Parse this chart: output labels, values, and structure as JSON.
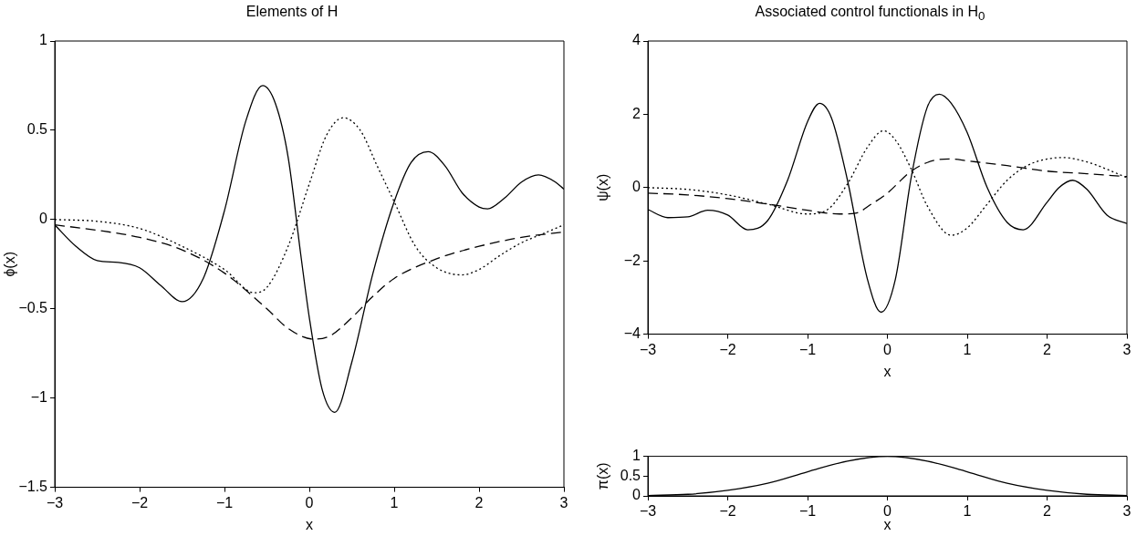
{
  "chart_data": [
    {
      "type": "line",
      "title": "Elements of H",
      "xlabel": "x",
      "ylabel": "ϕ(x)",
      "xlim": [
        -3,
        3
      ],
      "xticks": [
        -3,
        -2,
        -1,
        0,
        1,
        2,
        3
      ],
      "ylim": [
        -1.5,
        1
      ],
      "yticks": [
        -1.5,
        -1,
        -0.5,
        0,
        0.5,
        1
      ],
      "grid": false,
      "legend": false,
      "marker": "none",
      "series": [
        {
          "color": "#000000",
          "line_style": "solid",
          "x": [
            -3,
            -2.75,
            -2.5,
            -2.25,
            -2,
            -1.75,
            -1.5,
            -1.25,
            -1,
            -0.75,
            -0.55,
            -0.4,
            -0.25,
            -0.1,
            0,
            0.15,
            0.3,
            0.5,
            0.75,
            1,
            1.2,
            1.4,
            1.6,
            1.8,
            2,
            2.1,
            2.3,
            2.5,
            2.7,
            2.9,
            3
          ],
          "values": [
            -0.03,
            -0.15,
            -0.23,
            -0.24,
            -0.27,
            -0.37,
            -0.46,
            -0.33,
            0.05,
            0.55,
            0.75,
            0.65,
            0.35,
            -0.2,
            -0.55,
            -0.95,
            -1.08,
            -0.8,
            -0.3,
            0.1,
            0.32,
            0.38,
            0.3,
            0.15,
            0.07,
            0.06,
            0.12,
            0.21,
            0.25,
            0.21,
            0.17
          ]
        },
        {
          "color": "#000000",
          "line_style": "dotted",
          "x": [
            -3,
            -2.5,
            -2,
            -1.5,
            -1,
            -0.65,
            -0.5,
            -0.25,
            0,
            0.2,
            0.4,
            0.6,
            0.8,
            1,
            1.25,
            1.5,
            1.8,
            2,
            2.25,
            2.5,
            2.75,
            3
          ],
          "values": [
            0,
            -0.01,
            -0.05,
            -0.15,
            -0.28,
            -0.41,
            -0.38,
            -0.15,
            0.2,
            0.47,
            0.57,
            0.5,
            0.3,
            0.1,
            -0.15,
            -0.27,
            -0.31,
            -0.28,
            -0.2,
            -0.13,
            -0.08,
            -0.03
          ]
        },
        {
          "color": "#000000",
          "line_style": "dashed",
          "x": [
            -3,
            -2.5,
            -2,
            -1.5,
            -1,
            -0.5,
            -0.25,
            0.05,
            0.25,
            0.5,
            0.75,
            1,
            1.5,
            2,
            2.5,
            3
          ],
          "values": [
            -0.03,
            -0.06,
            -0.1,
            -0.17,
            -0.3,
            -0.5,
            -0.61,
            -0.67,
            -0.65,
            -0.55,
            -0.43,
            -0.33,
            -0.22,
            -0.15,
            -0.1,
            -0.07
          ]
        }
      ]
    },
    {
      "type": "line",
      "title": "Associated control functionals in H$_{0}$",
      "xlabel": "x",
      "ylabel": "ψ(x)",
      "xlim": [
        -3,
        3
      ],
      "xticks": [
        -3,
        -2,
        -1,
        0,
        1,
        2,
        3
      ],
      "ylim": [
        -4,
        4
      ],
      "yticks": [
        -4,
        -2,
        0,
        2,
        4
      ],
      "grid": false,
      "legend": false,
      "marker": "none",
      "series": [
        {
          "color": "#000000",
          "line_style": "solid",
          "x": [
            -3,
            -2.75,
            -2.5,
            -2.25,
            -2,
            -1.75,
            -1.5,
            -1.25,
            -1,
            -0.85,
            -0.7,
            -0.5,
            -0.25,
            -0.08,
            0.1,
            0.3,
            0.5,
            0.65,
            0.8,
            1,
            1.25,
            1.5,
            1.7,
            2,
            2.15,
            2.32,
            2.5,
            2.75,
            3
          ],
          "values": [
            -0.6,
            -0.82,
            -0.8,
            -0.62,
            -0.75,
            -1.15,
            -0.9,
            0.2,
            1.8,
            2.3,
            1.9,
            0.2,
            -2.5,
            -3.4,
            -2.5,
            0.3,
            2.2,
            2.55,
            2.3,
            1.5,
            0,
            -0.95,
            -1.15,
            -0.4,
            0,
            0.2,
            -0.05,
            -0.75,
            -0.98
          ]
        },
        {
          "color": "#000000",
          "line_style": "dotted",
          "x": [
            -3,
            -2.5,
            -2,
            -1.5,
            -1,
            -0.75,
            -0.5,
            -0.25,
            -0.05,
            0.1,
            0.3,
            0.5,
            0.8,
            1,
            1.25,
            1.5,
            1.75,
            2,
            2.2,
            2.5,
            2.75,
            3
          ],
          "values": [
            0,
            -0.05,
            -0.2,
            -0.45,
            -0.72,
            -0.6,
            0.1,
            1.1,
            1.55,
            1.3,
            0.5,
            -0.5,
            -1.3,
            -1.1,
            -0.45,
            0.2,
            0.6,
            0.78,
            0.82,
            0.7,
            0.5,
            0.27
          ]
        },
        {
          "color": "#000000",
          "line_style": "dashed",
          "x": [
            -3,
            -2.5,
            -2,
            -1.5,
            -1,
            -0.6,
            -0.4,
            -0.2,
            0,
            0.3,
            0.6,
            0.8,
            1,
            1.5,
            2,
            2.5,
            3
          ],
          "values": [
            -0.15,
            -0.2,
            -0.3,
            -0.45,
            -0.62,
            -0.72,
            -0.7,
            -0.45,
            -0.15,
            0.45,
            0.75,
            0.78,
            0.73,
            0.6,
            0.45,
            0.38,
            0.3
          ]
        }
      ]
    },
    {
      "type": "line",
      "xlabel": "x",
      "ylabel": "π(x)",
      "xlim": [
        -3,
        3
      ],
      "xticks": [
        -3,
        -2,
        -1,
        0,
        1,
        2,
        3
      ],
      "ylim": [
        0,
        1
      ],
      "yticks": [
        0,
        0.5,
        1
      ],
      "grid": false,
      "legend": false,
      "marker": "none",
      "series": [
        {
          "color": "#000000",
          "line_style": "solid",
          "x": [
            -3,
            -2.5,
            -2,
            -1.5,
            -1,
            -0.5,
            0,
            0.5,
            1,
            1.5,
            2,
            2.5,
            3
          ],
          "values": [
            0.01,
            0.04,
            0.14,
            0.32,
            0.61,
            0.88,
            1,
            0.88,
            0.61,
            0.32,
            0.14,
            0.04,
            0.01
          ]
        }
      ]
    }
  ]
}
